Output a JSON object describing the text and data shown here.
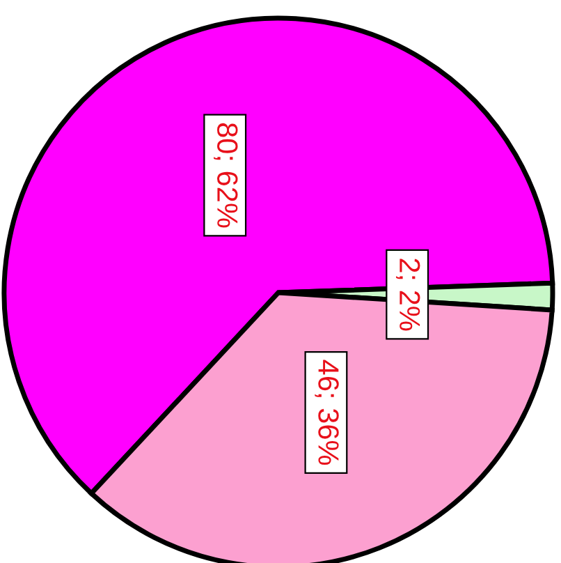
{
  "chart_data": {
    "type": "pie",
    "categories": [
      null,
      null,
      null
    ],
    "values": [
      80,
      2,
      46
    ],
    "colors": [
      "#ff00ff",
      "#c8f7c8",
      "#fca0d0"
    ],
    "value_labels": [
      "80; 62%",
      "2; 2%",
      "46; 36%"
    ]
  }
}
